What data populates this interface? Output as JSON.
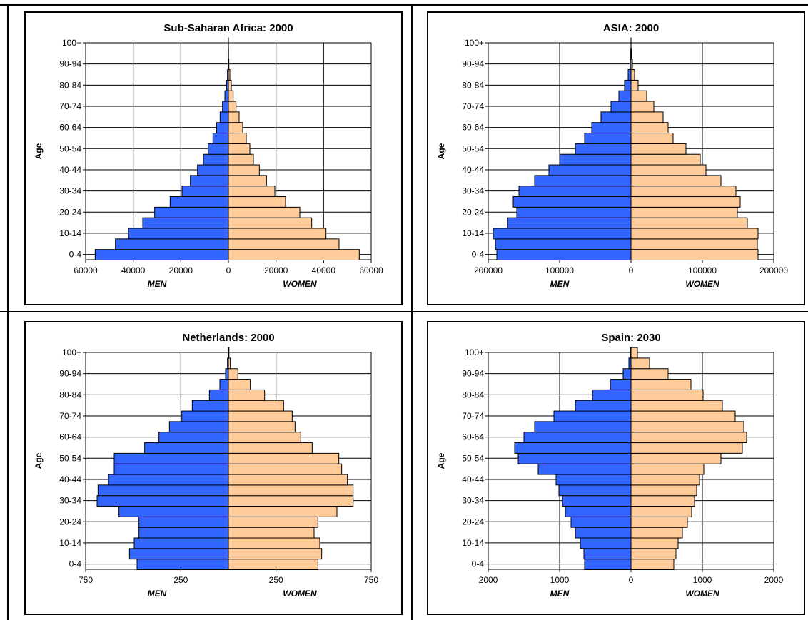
{
  "colors": {
    "men": "#3366FF",
    "women": "#FFCC99",
    "stroke": "#000000"
  },
  "chart_data": [
    {
      "type": "bar",
      "orientation": "horizontal-pyramid",
      "title": "Sub-Saharan Africa: 2000",
      "ylabel": "Age",
      "xlabel_left": "MEN",
      "xlabel_right": "WOMEN",
      "xlim": [
        -60000,
        60000
      ],
      "xticks": [
        -60000,
        -40000,
        -20000,
        0,
        20000,
        40000,
        60000
      ],
      "xtick_labels": [
        "60000",
        "40000",
        "20000",
        "0",
        "20000",
        "40000",
        "60000"
      ],
      "categories": [
        "0-4",
        "5-9",
        "10-14",
        "15-19",
        "20-24",
        "25-29",
        "30-34",
        "35-39",
        "40-44",
        "45-49",
        "50-54",
        "55-59",
        "60-64",
        "65-69",
        "70-74",
        "75-79",
        "80-84",
        "85-89",
        "90-94",
        "95-99",
        "100+"
      ],
      "ytick_labels": [
        "0-4",
        "10-14",
        "20-24",
        "30-34",
        "40-44",
        "50-54",
        "60-64",
        "70-74",
        "80-84",
        "90-94",
        "100+"
      ],
      "grid": true,
      "series": [
        {
          "name": "MEN",
          "values": [
            56000,
            47500,
            42000,
            36000,
            31000,
            24500,
            19500,
            16000,
            13000,
            10500,
            8500,
            6500,
            5000,
            3500,
            2500,
            1500,
            800,
            400,
            150,
            50,
            10
          ]
        },
        {
          "name": "WOMEN",
          "values": [
            55000,
            46500,
            41000,
            35000,
            30000,
            24000,
            19500,
            16000,
            13000,
            10500,
            9000,
            7500,
            6000,
            4500,
            3200,
            2000,
            1200,
            600,
            200,
            60,
            15
          ]
        }
      ]
    },
    {
      "type": "bar",
      "orientation": "horizontal-pyramid",
      "title": "ASIA: 2000",
      "ylabel": "Age",
      "xlabel_left": "MEN",
      "xlabel_right": "WOMEN",
      "xlim": [
        -200000,
        200000
      ],
      "xticks": [
        -200000,
        -100000,
        0,
        100000,
        200000
      ],
      "xtick_labels": [
        "200000",
        "100000",
        "0",
        "100000",
        "200000"
      ],
      "categories": [
        "0-4",
        "5-9",
        "10-14",
        "15-19",
        "20-24",
        "25-29",
        "30-34",
        "35-39",
        "40-44",
        "45-49",
        "50-54",
        "55-59",
        "60-64",
        "65-69",
        "70-74",
        "75-79",
        "80-84",
        "85-89",
        "90-94",
        "95-99",
        "100+"
      ],
      "ytick_labels": [
        "0-4",
        "10-14",
        "20-24",
        "30-34",
        "40-44",
        "50-54",
        "60-64",
        "70-74",
        "80-84",
        "90-94",
        "100+"
      ],
      "grid": true,
      "series": [
        {
          "name": "MEN",
          "values": [
            188000,
            190000,
            193000,
            173000,
            160000,
            165000,
            157000,
            135000,
            115000,
            100000,
            78000,
            65000,
            55000,
            42000,
            28000,
            17000,
            9000,
            4000,
            1500,
            400,
            50
          ]
        },
        {
          "name": "WOMEN",
          "values": [
            178000,
            177000,
            178000,
            163000,
            149000,
            153000,
            147000,
            126000,
            105000,
            97000,
            77000,
            59000,
            52000,
            45000,
            32000,
            22000,
            10000,
            5000,
            2000,
            600,
            80
          ]
        }
      ]
    },
    {
      "type": "bar",
      "orientation": "horizontal-pyramid",
      "title": "Netherlands: 2000",
      "ylabel": "Age",
      "xlabel_left": "MEN",
      "xlabel_right": "WOMEN",
      "xlim": [
        -750,
        750
      ],
      "xticks": [
        -750,
        -250,
        250,
        750
      ],
      "xtick_labels": [
        "750",
        "250",
        "250",
        "750"
      ],
      "categories": [
        "0-4",
        "5-9",
        "10-14",
        "15-19",
        "20-24",
        "25-29",
        "30-34",
        "35-39",
        "40-44",
        "45-49",
        "50-54",
        "55-59",
        "60-64",
        "65-69",
        "70-74",
        "75-79",
        "80-84",
        "85-89",
        "90-94",
        "95-99",
        "100+"
      ],
      "ytick_labels": [
        "0-4",
        "10-14",
        "20-24",
        "30-34",
        "40-44",
        "50-54",
        "60-64",
        "70-74",
        "80-84",
        "90-94",
        "100+"
      ],
      "grid": true,
      "series": [
        {
          "name": "MEN",
          "values": [
            480,
            520,
            495,
            470,
            470,
            575,
            690,
            685,
            630,
            600,
            600,
            440,
            365,
            310,
            245,
            190,
            100,
            45,
            15,
            5,
            2
          ]
        },
        {
          "name": "WOMEN",
          "values": [
            470,
            490,
            480,
            450,
            470,
            570,
            655,
            655,
            625,
            595,
            580,
            440,
            380,
            350,
            335,
            290,
            190,
            115,
            50,
            10,
            3
          ]
        }
      ]
    },
    {
      "type": "bar",
      "orientation": "horizontal-pyramid",
      "title": "Spain: 2030",
      "ylabel": "Age",
      "xlabel_left": "MEN",
      "xlabel_right": "WOMEN",
      "xlim": [
        -2000,
        2000
      ],
      "xticks": [
        -2000,
        -1000,
        0,
        1000,
        2000
      ],
      "xtick_labels": [
        "2000",
        "1000",
        "0",
        "1000",
        "2000"
      ],
      "categories": [
        "0-4",
        "5-9",
        "10-14",
        "15-19",
        "20-24",
        "25-29",
        "30-34",
        "35-39",
        "40-44",
        "45-49",
        "50-54",
        "55-59",
        "60-64",
        "65-69",
        "70-74",
        "75-79",
        "80-84",
        "85-89",
        "90-94",
        "95-99",
        "100+"
      ],
      "ytick_labels": [
        "0-4",
        "10-14",
        "20-24",
        "30-34",
        "40-44",
        "50-54",
        "60-64",
        "70-74",
        "80-84",
        "90-94",
        "100+"
      ],
      "grid": true,
      "series": [
        {
          "name": "MEN",
          "values": [
            650,
            660,
            710,
            780,
            840,
            920,
            960,
            1010,
            1050,
            1300,
            1580,
            1630,
            1500,
            1350,
            1080,
            780,
            540,
            290,
            110,
            30,
            5
          ]
        },
        {
          "name": "WOMEN",
          "values": [
            600,
            630,
            660,
            720,
            790,
            850,
            890,
            920,
            960,
            1020,
            1260,
            1560,
            1620,
            1580,
            1460,
            1280,
            1010,
            840,
            520,
            260,
            90
          ]
        }
      ]
    }
  ]
}
